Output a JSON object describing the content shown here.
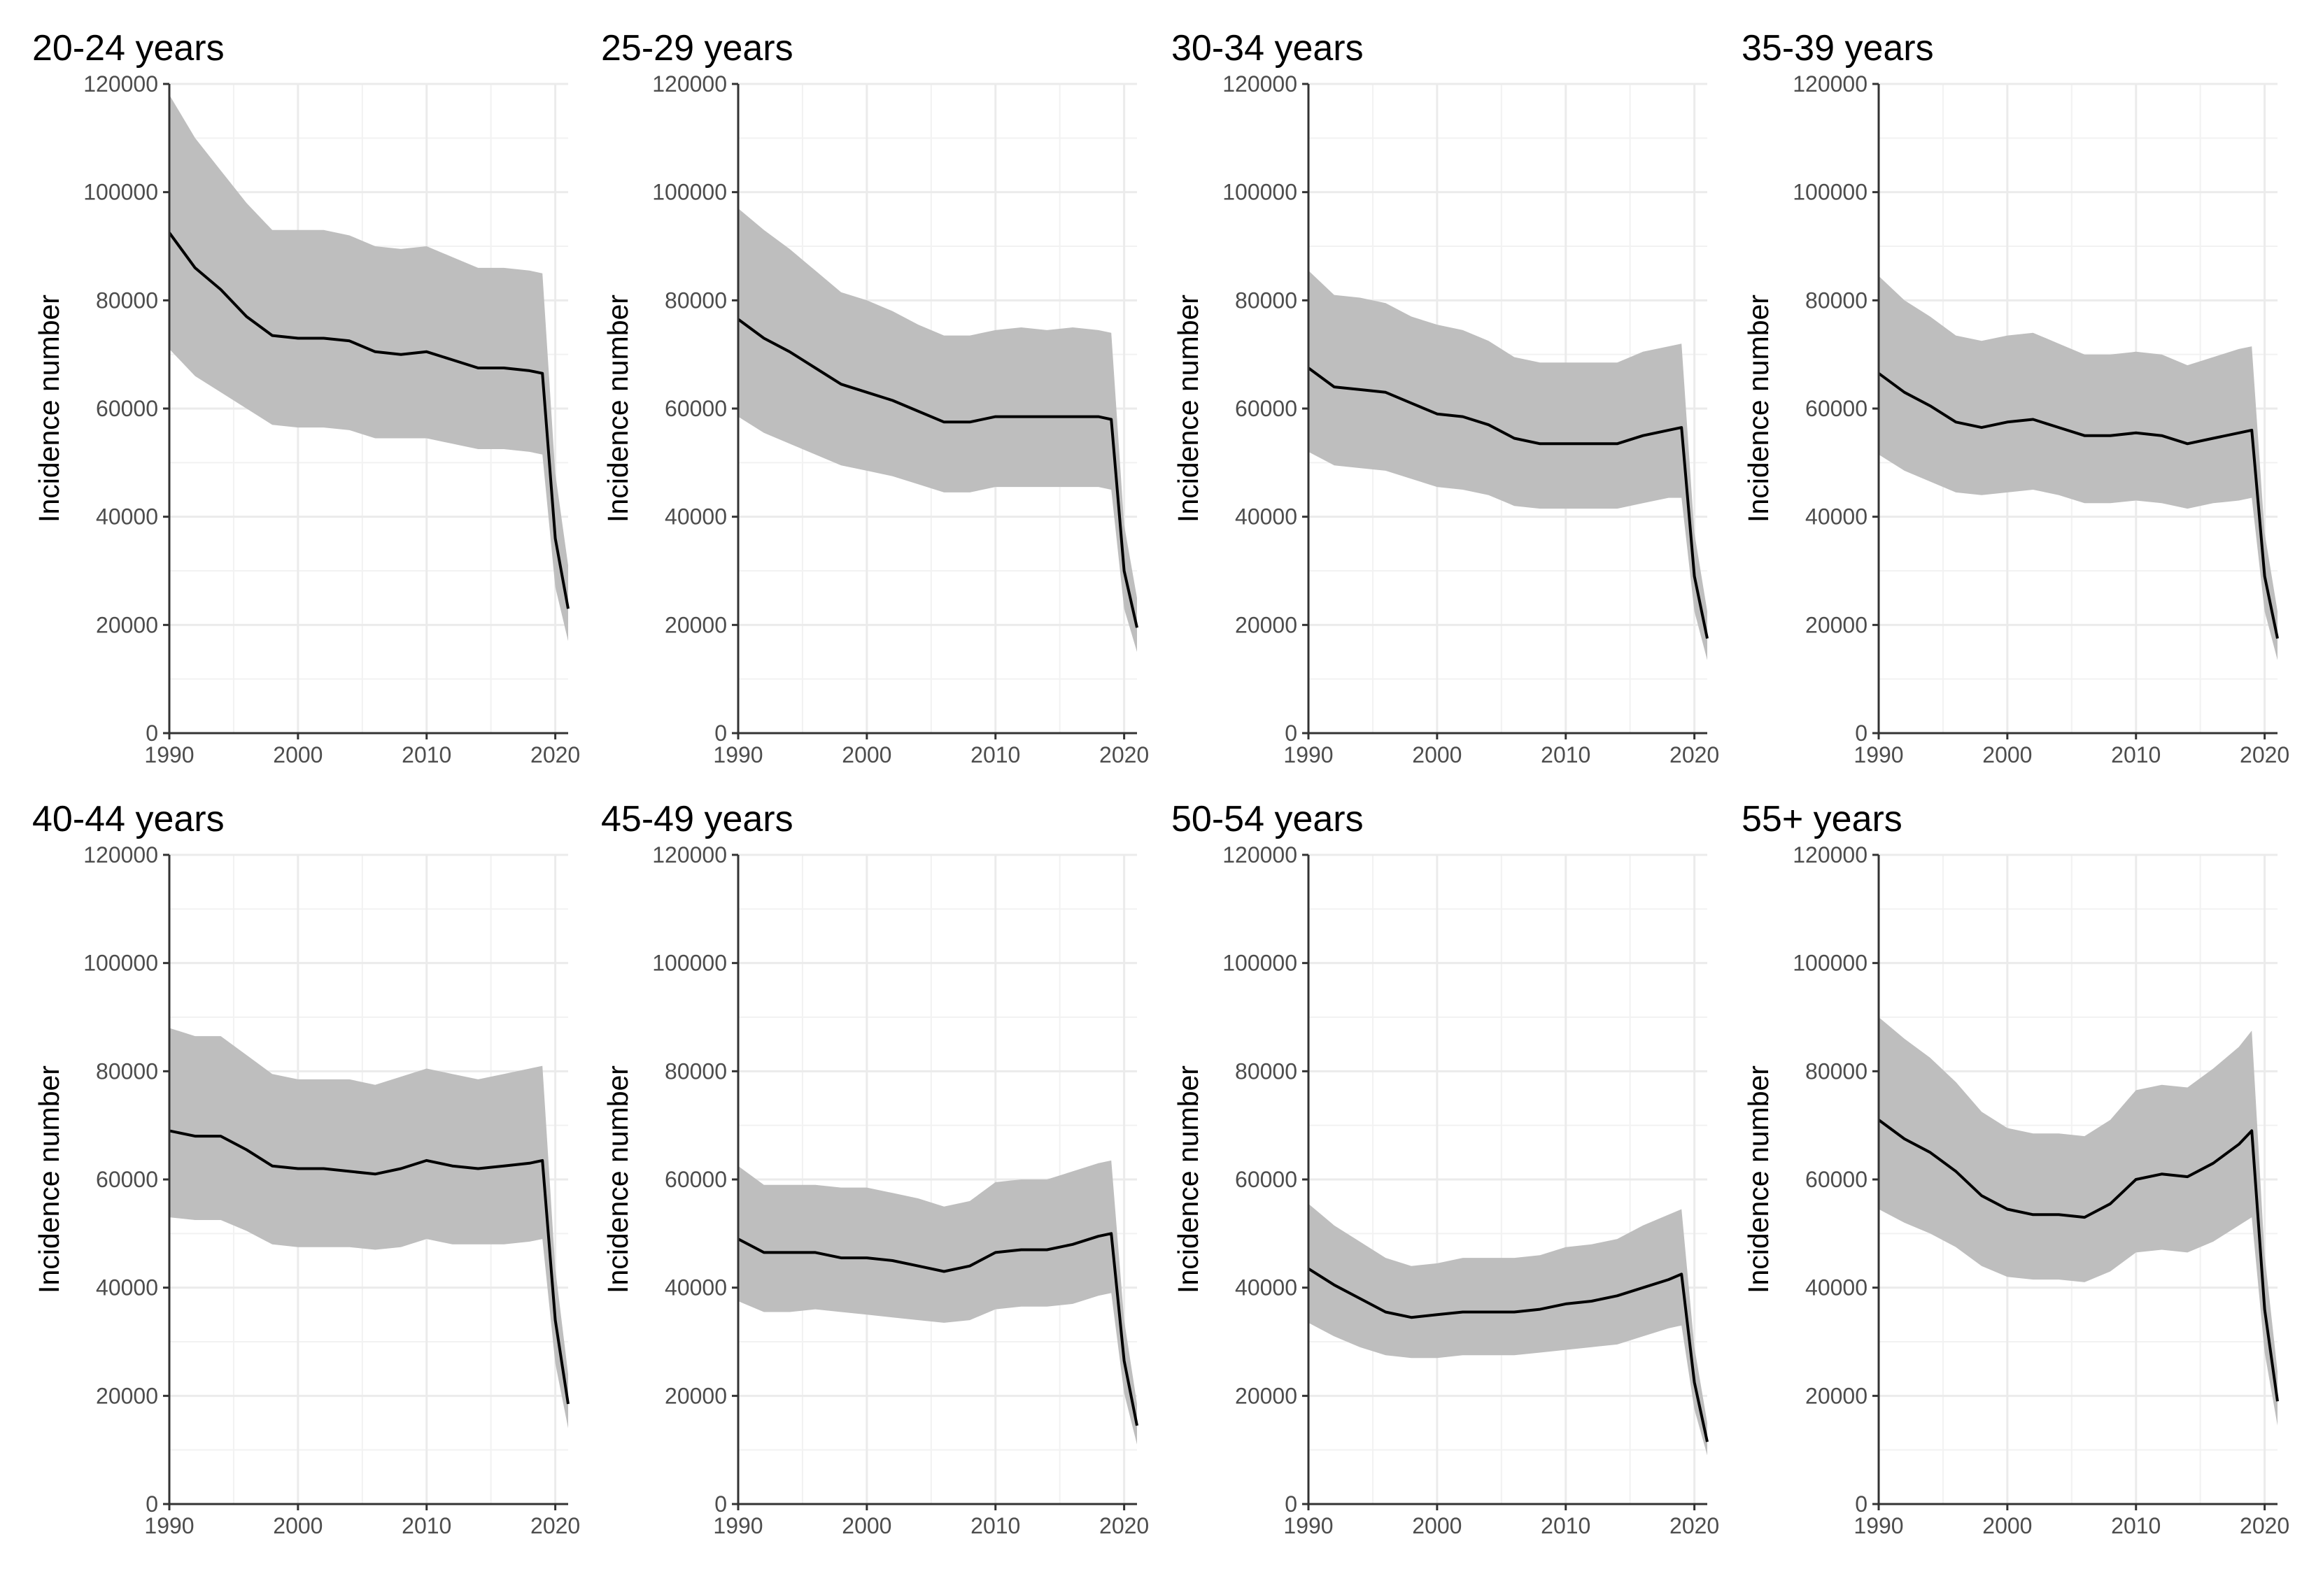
{
  "chart_data": [
    {
      "type": "area",
      "title": "20-24 years",
      "xlabel": "",
      "ylabel": "Incidence number",
      "xlim": [
        1990,
        2021
      ],
      "ylim": [
        0,
        120000
      ],
      "xticks": [
        1990,
        2000,
        2010,
        2020
      ],
      "yticks": [
        0,
        20000,
        40000,
        60000,
        80000,
        100000,
        120000
      ],
      "grid": true,
      "legend": "none",
      "x": [
        1990,
        1992,
        1994,
        1996,
        1998,
        2000,
        2002,
        2004,
        2006,
        2008,
        2010,
        2012,
        2014,
        2016,
        2018,
        2019,
        2020,
        2021
      ],
      "series": [
        {
          "role": "estimate",
          "values": [
            92500,
            86000,
            82000,
            77000,
            73500,
            73000,
            73000,
            72500,
            70500,
            70000,
            70500,
            69000,
            67500,
            67500,
            67000,
            66500,
            36000,
            23000
          ]
        },
        {
          "role": "upper",
          "values": [
            118000,
            110000,
            104000,
            98000,
            93000,
            93000,
            93000,
            92000,
            90000,
            89500,
            90000,
            88000,
            86000,
            86000,
            85500,
            85000,
            48000,
            31000
          ]
        },
        {
          "role": "lower",
          "values": [
            71000,
            66000,
            63000,
            60000,
            57000,
            56500,
            56500,
            56000,
            54500,
            54500,
            54500,
            53500,
            52500,
            52500,
            52000,
            51500,
            27000,
            17000
          ]
        }
      ]
    },
    {
      "type": "area",
      "title": "25-29 years",
      "xlabel": "",
      "ylabel": "Incidence number",
      "xlim": [
        1990,
        2021
      ],
      "ylim": [
        0,
        120000
      ],
      "xticks": [
        1990,
        2000,
        2010,
        2020
      ],
      "yticks": [
        0,
        20000,
        40000,
        60000,
        80000,
        100000,
        120000
      ],
      "grid": true,
      "legend": "none",
      "x": [
        1990,
        1992,
        1994,
        1996,
        1998,
        2000,
        2002,
        2004,
        2006,
        2008,
        2010,
        2012,
        2014,
        2016,
        2018,
        2019,
        2020,
        2021
      ],
      "series": [
        {
          "role": "estimate",
          "values": [
            76500,
            73000,
            70500,
            67500,
            64500,
            63000,
            61500,
            59500,
            57500,
            57500,
            58500,
            58500,
            58500,
            58500,
            58500,
            58000,
            30000,
            19500
          ]
        },
        {
          "role": "upper",
          "values": [
            97000,
            93000,
            89500,
            85500,
            81500,
            80000,
            78000,
            75500,
            73500,
            73500,
            74500,
            75000,
            74500,
            75000,
            74500,
            74000,
            38500,
            25000
          ]
        },
        {
          "role": "lower",
          "values": [
            58500,
            55500,
            53500,
            51500,
            49500,
            48500,
            47500,
            46000,
            44500,
            44500,
            45500,
            45500,
            45500,
            45500,
            45500,
            45000,
            23000,
            15000
          ]
        }
      ]
    },
    {
      "type": "area",
      "title": "30-34 years",
      "xlabel": "",
      "ylabel": "Incidence number",
      "xlim": [
        1990,
        2021
      ],
      "ylim": [
        0,
        120000
      ],
      "xticks": [
        1990,
        2000,
        2010,
        2020
      ],
      "yticks": [
        0,
        20000,
        40000,
        60000,
        80000,
        100000,
        120000
      ],
      "grid": true,
      "legend": "none",
      "x": [
        1990,
        1992,
        1994,
        1996,
        1998,
        2000,
        2002,
        2004,
        2006,
        2008,
        2010,
        2012,
        2014,
        2016,
        2018,
        2019,
        2020,
        2021
      ],
      "series": [
        {
          "role": "estimate",
          "values": [
            67500,
            64000,
            63500,
            63000,
            61000,
            59000,
            58500,
            57000,
            54500,
            53500,
            53500,
            53500,
            53500,
            55000,
            56000,
            56500,
            29000,
            17500
          ]
        },
        {
          "role": "upper",
          "values": [
            85500,
            81000,
            80500,
            79500,
            77000,
            75500,
            74500,
            72500,
            69500,
            68500,
            68500,
            68500,
            68500,
            70500,
            71500,
            72000,
            37000,
            22500
          ]
        },
        {
          "role": "lower",
          "values": [
            52000,
            49500,
            49000,
            48500,
            47000,
            45500,
            45000,
            44000,
            42000,
            41500,
            41500,
            41500,
            41500,
            42500,
            43500,
            43500,
            22500,
            13500
          ]
        }
      ]
    },
    {
      "type": "area",
      "title": "35-39 years",
      "xlabel": "",
      "ylabel": "Incidence number",
      "xlim": [
        1990,
        2021
      ],
      "ylim": [
        0,
        120000
      ],
      "xticks": [
        1990,
        2000,
        2010,
        2020
      ],
      "yticks": [
        0,
        20000,
        40000,
        60000,
        80000,
        100000,
        120000
      ],
      "grid": true,
      "legend": "none",
      "x": [
        1990,
        1992,
        1994,
        1996,
        1998,
        2000,
        2002,
        2004,
        2006,
        2008,
        2010,
        2012,
        2014,
        2016,
        2018,
        2019,
        2020,
        2021
      ],
      "series": [
        {
          "role": "estimate",
          "values": [
            66500,
            63000,
            60500,
            57500,
            56500,
            57500,
            58000,
            56500,
            55000,
            55000,
            55500,
            55000,
            53500,
            54500,
            55500,
            56000,
            29000,
            17500
          ]
        },
        {
          "role": "upper",
          "values": [
            84500,
            80000,
            77000,
            73500,
            72500,
            73500,
            74000,
            72000,
            70000,
            70000,
            70500,
            70000,
            68000,
            69500,
            71000,
            71500,
            37000,
            22500
          ]
        },
        {
          "role": "lower",
          "values": [
            51500,
            48500,
            46500,
            44500,
            44000,
            44500,
            45000,
            44000,
            42500,
            42500,
            43000,
            42500,
            41500,
            42500,
            43000,
            43500,
            22500,
            13500
          ]
        }
      ]
    },
    {
      "type": "area",
      "title": "40-44 years",
      "xlabel": "",
      "ylabel": "Incidence number",
      "xlim": [
        1990,
        2021
      ],
      "ylim": [
        0,
        120000
      ],
      "xticks": [
        1990,
        2000,
        2010,
        2020
      ],
      "yticks": [
        0,
        20000,
        40000,
        60000,
        80000,
        100000,
        120000
      ],
      "grid": true,
      "legend": "none",
      "x": [
        1990,
        1992,
        1994,
        1996,
        1998,
        2000,
        2002,
        2004,
        2006,
        2008,
        2010,
        2012,
        2014,
        2016,
        2018,
        2019,
        2020,
        2021
      ],
      "series": [
        {
          "role": "estimate",
          "values": [
            69000,
            68000,
            68000,
            65500,
            62500,
            62000,
            62000,
            61500,
            61000,
            62000,
            63500,
            62500,
            62000,
            62500,
            63000,
            63500,
            34000,
            18500
          ]
        },
        {
          "role": "upper",
          "values": [
            88000,
            86500,
            86500,
            83000,
            79500,
            78500,
            78500,
            78500,
            77500,
            79000,
            80500,
            79500,
            78500,
            79500,
            80500,
            81000,
            43500,
            24000
          ]
        },
        {
          "role": "lower",
          "values": [
            53000,
            52500,
            52500,
            50500,
            48000,
            47500,
            47500,
            47500,
            47000,
            47500,
            49000,
            48000,
            48000,
            48000,
            48500,
            49000,
            26000,
            14000
          ]
        }
      ]
    },
    {
      "type": "area",
      "title": "45-49 years",
      "xlabel": "",
      "ylabel": "Incidence number",
      "xlim": [
        1990,
        2021
      ],
      "ylim": [
        0,
        120000
      ],
      "xticks": [
        1990,
        2000,
        2010,
        2020
      ],
      "yticks": [
        0,
        20000,
        40000,
        60000,
        80000,
        100000,
        120000
      ],
      "grid": true,
      "legend": "none",
      "x": [
        1990,
        1992,
        1994,
        1996,
        1998,
        2000,
        2002,
        2004,
        2006,
        2008,
        2010,
        2012,
        2014,
        2016,
        2018,
        2019,
        2020,
        2021
      ],
      "series": [
        {
          "role": "estimate",
          "values": [
            49000,
            46500,
            46500,
            46500,
            45500,
            45500,
            45000,
            44000,
            43000,
            44000,
            46500,
            47000,
            47000,
            48000,
            49500,
            50000,
            26500,
            14500
          ]
        },
        {
          "role": "upper",
          "values": [
            62500,
            59000,
            59000,
            59000,
            58500,
            58500,
            57500,
            56500,
            55000,
            56000,
            59500,
            60000,
            60000,
            61500,
            63000,
            63500,
            34000,
            18500
          ]
        },
        {
          "role": "lower",
          "values": [
            37500,
            35500,
            35500,
            36000,
            35500,
            35000,
            34500,
            34000,
            33500,
            34000,
            36000,
            36500,
            36500,
            37000,
            38500,
            39000,
            20500,
            11000
          ]
        }
      ]
    },
    {
      "type": "area",
      "title": "50-54 years",
      "xlabel": "",
      "ylabel": "Incidence number",
      "xlim": [
        1990,
        2021
      ],
      "ylim": [
        0,
        120000
      ],
      "xticks": [
        1990,
        2000,
        2010,
        2020
      ],
      "yticks": [
        0,
        20000,
        40000,
        60000,
        80000,
        100000,
        120000
      ],
      "grid": true,
      "legend": "none",
      "x": [
        1990,
        1992,
        1994,
        1996,
        1998,
        2000,
        2002,
        2004,
        2006,
        2008,
        2010,
        2012,
        2014,
        2016,
        2018,
        2019,
        2020,
        2021
      ],
      "series": [
        {
          "role": "estimate",
          "values": [
            43500,
            40500,
            38000,
            35500,
            34500,
            35000,
            35500,
            35500,
            35500,
            36000,
            37000,
            37500,
            38500,
            40000,
            41500,
            42500,
            22500,
            11500
          ]
        },
        {
          "role": "upper",
          "values": [
            55500,
            51500,
            48500,
            45500,
            44000,
            44500,
            45500,
            45500,
            45500,
            46000,
            47500,
            48000,
            49000,
            51500,
            53500,
            54500,
            29000,
            15000
          ]
        },
        {
          "role": "lower",
          "values": [
            33500,
            31000,
            29000,
            27500,
            27000,
            27000,
            27500,
            27500,
            27500,
            28000,
            28500,
            29000,
            29500,
            31000,
            32500,
            33000,
            17500,
            9000
          ]
        }
      ]
    },
    {
      "type": "area",
      "title": "55+ years",
      "xlabel": "",
      "ylabel": "Incidence number",
      "xlim": [
        1990,
        2021
      ],
      "ylim": [
        0,
        120000
      ],
      "xticks": [
        1990,
        2000,
        2010,
        2020
      ],
      "yticks": [
        0,
        20000,
        40000,
        60000,
        80000,
        100000,
        120000
      ],
      "grid": true,
      "legend": "none",
      "x": [
        1990,
        1992,
        1994,
        1996,
        1998,
        2000,
        2002,
        2004,
        2006,
        2008,
        2010,
        2012,
        2014,
        2016,
        2018,
        2019,
        2020,
        2021
      ],
      "series": [
        {
          "role": "estimate",
          "values": [
            71000,
            67500,
            65000,
            61500,
            57000,
            54500,
            53500,
            53500,
            53000,
            55500,
            60000,
            61000,
            60500,
            63000,
            66500,
            69000,
            36000,
            19000
          ]
        },
        {
          "role": "upper",
          "values": [
            90000,
            86000,
            82500,
            78000,
            72500,
            69500,
            68500,
            68500,
            68000,
            71000,
            76500,
            77500,
            77000,
            80500,
            84500,
            87500,
            46000,
            24500
          ]
        },
        {
          "role": "lower",
          "values": [
            54500,
            52000,
            50000,
            47500,
            44000,
            42000,
            41500,
            41500,
            41000,
            43000,
            46500,
            47000,
            46500,
            48500,
            51500,
            53000,
            28000,
            14500
          ]
        }
      ]
    }
  ]
}
